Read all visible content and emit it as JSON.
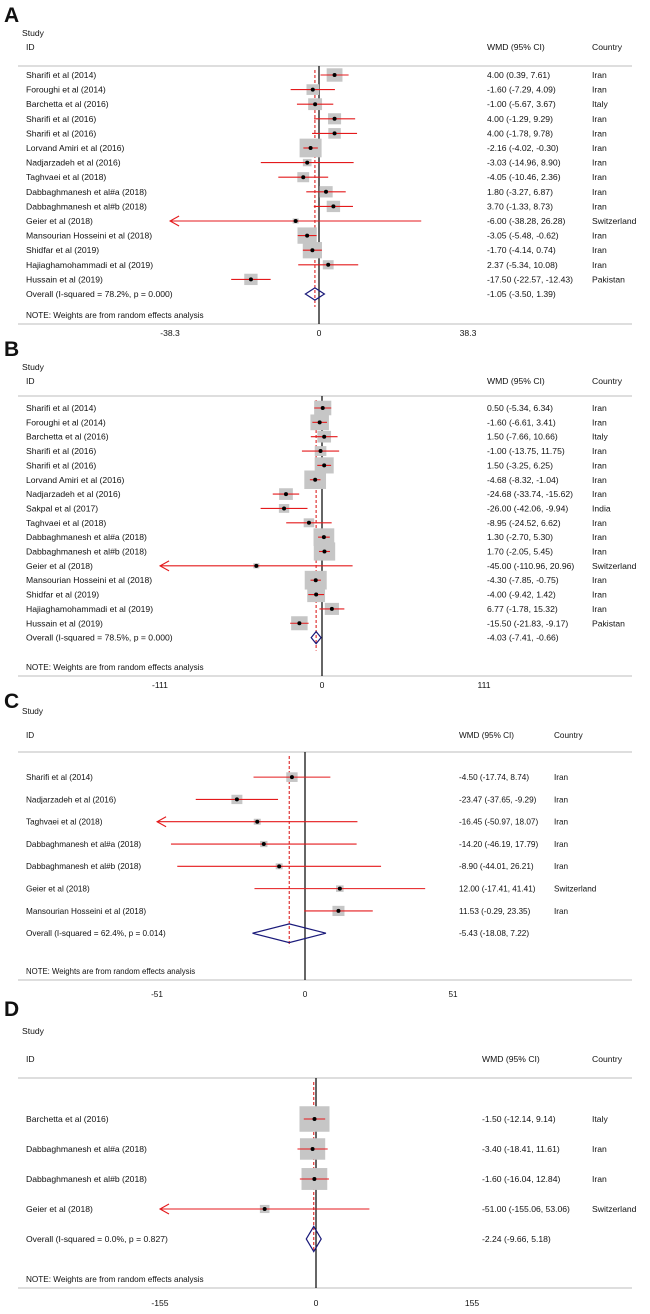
{
  "chart_data": [
    {
      "type": "forest",
      "panel_label": "A",
      "header": {
        "study": "Study",
        "id": "ID",
        "effect": "WMD (95% CI)",
        "country": "Country"
      },
      "xlim": [
        -38.3,
        38.3
      ],
      "ticks": [
        "-38.3",
        "0",
        "38.3"
      ],
      "null_value": 0,
      "pooled_line": -1.05,
      "studies": [
        {
          "name": "Sharifi et al (2014)",
          "est": 4.0,
          "lo": 0.39,
          "hi": 7.61,
          "label": "4.00 (0.39, 7.61)",
          "country": "Iran"
        },
        {
          "name": "Foroughi et al (2014)",
          "est": -1.6,
          "lo": -7.29,
          "hi": 4.09,
          "label": "-1.60 (-7.29, 4.09)",
          "country": "Iran"
        },
        {
          "name": "Barchetta et al (2016)",
          "est": -1.0,
          "lo": -5.67,
          "hi": 3.67,
          "label": "-1.00 (-5.67, 3.67)",
          "country": "Italy"
        },
        {
          "name": "Sharifi et al (2016)",
          "est": 4.0,
          "lo": -1.29,
          "hi": 9.29,
          "label": "4.00 (-1.29, 9.29)",
          "country": "Iran"
        },
        {
          "name": "Sharifi et al (2016)",
          "est": 4.0,
          "lo": -1.78,
          "hi": 9.78,
          "label": "4.00 (-1.78, 9.78)",
          "country": "Iran"
        },
        {
          "name": "Lorvand Amiri et al (2016)",
          "est": -2.16,
          "lo": -4.02,
          "hi": -0.3,
          "label": "-2.16 (-4.02, -0.30)",
          "country": "Iran"
        },
        {
          "name": "Nadjarzadeh et al (2016)",
          "est": -3.03,
          "lo": -14.96,
          "hi": 8.9,
          "label": "-3.03 (-14.96, 8.90)",
          "country": "Iran"
        },
        {
          "name": "Taghvaei et al (2018)",
          "est": -4.05,
          "lo": -10.46,
          "hi": 2.36,
          "label": "-4.05 (-10.46, 2.36)",
          "country": "Iran"
        },
        {
          "name": "Dabbaghmanesh et al#a (2018)",
          "est": 1.8,
          "lo": -3.27,
          "hi": 6.87,
          "label": "1.80 (-3.27, 6.87)",
          "country": "Iran"
        },
        {
          "name": "Dabbaghmanesh et al#b (2018)",
          "est": 3.7,
          "lo": -1.33,
          "hi": 8.73,
          "label": "3.70 (-1.33, 8.73)",
          "country": "Iran"
        },
        {
          "name": "Geier et al (2018)",
          "est": -6.0,
          "lo": -38.28,
          "hi": 26.28,
          "label": "-6.00 (-38.28, 26.28)",
          "country": "Switzerland"
        },
        {
          "name": "Mansourian Hosseini et al (2018)",
          "est": -3.05,
          "lo": -5.48,
          "hi": -0.62,
          "label": "-3.05 (-5.48, -0.62)",
          "country": "Iran"
        },
        {
          "name": "Shidfar et al (2019)",
          "est": -1.7,
          "lo": -4.14,
          "hi": 0.74,
          "label": "-1.70 (-4.14, 0.74)",
          "country": "Iran"
        },
        {
          "name": "Hajiaghamohammadi et al (2019)",
          "est": 2.37,
          "lo": -5.34,
          "hi": 10.08,
          "label": "2.37 (-5.34, 10.08)",
          "country": "Iran"
        },
        {
          "name": "Hussain et al (2019)",
          "est": -17.5,
          "lo": -22.57,
          "hi": -12.43,
          "label": "-17.50 (-22.57, -12.43)",
          "country": "Pakistan"
        }
      ],
      "overall": {
        "name": "Overall  (I-squared = 78.2%, p = 0.000)",
        "est": -1.05,
        "lo": -3.5,
        "hi": 1.39,
        "label": "-1.05 (-3.50, 1.39)"
      },
      "note": "NOTE: Weights are from random effects analysis"
    },
    {
      "type": "forest",
      "panel_label": "B",
      "header": {
        "study": "Study",
        "id": "ID",
        "effect": "WMD (95% CI)",
        "country": "Country"
      },
      "xlim": [
        -111,
        111
      ],
      "ticks": [
        "-111",
        "0",
        "111"
      ],
      "null_value": 0,
      "pooled_line": -4.03,
      "studies": [
        {
          "name": "Sharifi et al (2014)",
          "est": 0.5,
          "lo": -5.34,
          "hi": 6.34,
          "label": "0.50 (-5.34, 6.34)",
          "country": "Iran"
        },
        {
          "name": "Foroughi et al (2014)",
          "est": -1.6,
          "lo": -6.61,
          "hi": 3.41,
          "label": "-1.60 (-6.61, 3.41)",
          "country": "Iran"
        },
        {
          "name": "Barchetta et al (2016)",
          "est": 1.5,
          "lo": -7.66,
          "hi": 10.66,
          "label": "1.50 (-7.66, 10.66)",
          "country": "Italy"
        },
        {
          "name": "Sharifi et al (2016)",
          "est": -1.0,
          "lo": -13.75,
          "hi": 11.75,
          "label": "-1.00 (-13.75, 11.75)",
          "country": "Iran"
        },
        {
          "name": "Sharifi et al (2016)",
          "est": 1.5,
          "lo": -3.25,
          "hi": 6.25,
          "label": "1.50 (-3.25, 6.25)",
          "country": "Iran"
        },
        {
          "name": "Lorvand Amiri et al (2016)",
          "est": -4.68,
          "lo": -8.32,
          "hi": -1.04,
          "label": "-4.68 (-8.32, -1.04)",
          "country": "Iran"
        },
        {
          "name": "Nadjarzadeh et al (2016)",
          "est": -24.68,
          "lo": -33.74,
          "hi": -15.62,
          "label": "-24.68 (-33.74, -15.62)",
          "country": "Iran"
        },
        {
          "name": "Sakpal et al (2017)",
          "est": -26.0,
          "lo": -42.06,
          "hi": -9.94,
          "label": "-26.00 (-42.06, -9.94)",
          "country": "India"
        },
        {
          "name": "Taghvaei et al (2018)",
          "est": -8.95,
          "lo": -24.52,
          "hi": 6.62,
          "label": "-8.95 (-24.52, 6.62)",
          "country": "Iran"
        },
        {
          "name": "Dabbaghmanesh et al#a (2018)",
          "est": 1.3,
          "lo": -2.7,
          "hi": 5.3,
          "label": "1.30 (-2.70, 5.30)",
          "country": "Iran"
        },
        {
          "name": "Dabbaghmanesh et al#b (2018)",
          "est": 1.7,
          "lo": -2.05,
          "hi": 5.45,
          "label": "1.70 (-2.05, 5.45)",
          "country": "Iran"
        },
        {
          "name": "Geier et al (2018)",
          "est": -45.0,
          "lo": -110.96,
          "hi": 20.96,
          "label": "-45.00 (-110.96, 20.96)",
          "country": "Switzerland"
        },
        {
          "name": "Mansourian Hosseini et al (2018)",
          "est": -4.3,
          "lo": -7.85,
          "hi": -0.75,
          "label": "-4.30 (-7.85, -0.75)",
          "country": "Iran"
        },
        {
          "name": "Shidfar et al (2019)",
          "est": -4.0,
          "lo": -9.42,
          "hi": 1.42,
          "label": "-4.00 (-9.42, 1.42)",
          "country": "Iran"
        },
        {
          "name": "Hajiaghamohammadi et al (2019)",
          "est": 6.77,
          "lo": -1.78,
          "hi": 15.32,
          "label": "6.77 (-1.78, 15.32)",
          "country": "Iran"
        },
        {
          "name": "Hussain et al (2019)",
          "est": -15.5,
          "lo": -21.83,
          "hi": -9.17,
          "label": "-15.50 (-21.83, -9.17)",
          "country": "Pakistan"
        }
      ],
      "overall": {
        "name": "Overall  (I-squared = 78.5%, p = 0.000)",
        "est": -4.03,
        "lo": -7.41,
        "hi": -0.66,
        "label": "-4.03 (-7.41, -0.66)"
      },
      "note": "NOTE: Weights are from random effects analysis"
    },
    {
      "type": "forest",
      "panel_label": "C",
      "header": {
        "study": "Study",
        "id": "ID",
        "effect": "WMD (95% CI)",
        "country": "Country"
      },
      "xlim": [
        -51,
        51
      ],
      "ticks": [
        "-51",
        "0",
        "51"
      ],
      "null_value": 0,
      "pooled_line": -5.43,
      "studies": [
        {
          "name": "Sharifi et al (2014)",
          "est": -4.5,
          "lo": -17.74,
          "hi": 8.74,
          "label": "-4.50 (-17.74, 8.74)",
          "country": "Iran"
        },
        {
          "name": "Nadjarzadeh et al (2016)",
          "est": -23.47,
          "lo": -37.65,
          "hi": -9.29,
          "label": "-23.47 (-37.65, -9.29)",
          "country": "Iran"
        },
        {
          "name": "Taghvaei et al (2018)",
          "est": -16.45,
          "lo": -50.97,
          "hi": 18.07,
          "label": "-16.45 (-50.97, 18.07)",
          "country": "Iran"
        },
        {
          "name": "Dabbaghmanesh et al#a (2018)",
          "est": -14.2,
          "lo": -46.19,
          "hi": 17.79,
          "label": "-14.20 (-46.19, 17.79)",
          "country": "Iran"
        },
        {
          "name": "Dabbaghmanesh et al#b (2018)",
          "est": -8.9,
          "lo": -44.01,
          "hi": 26.21,
          "label": "-8.90 (-44.01, 26.21)",
          "country": "Iran"
        },
        {
          "name": "Geier et al (2018)",
          "est": 12.0,
          "lo": -17.41,
          "hi": 41.41,
          "label": "12.00 (-17.41, 41.41)",
          "country": "Switzerland"
        },
        {
          "name": "Mansourian Hosseini et al (2018)",
          "est": 11.53,
          "lo": -0.29,
          "hi": 23.35,
          "label": "11.53 (-0.29, 23.35)",
          "country": "Iran"
        }
      ],
      "overall": {
        "name": "Overall  (I-squared = 62.4%, p = 0.014)",
        "est": -5.43,
        "lo": -18.08,
        "hi": 7.22,
        "label": "-5.43 (-18.08, 7.22)"
      },
      "note": "NOTE: Weights are from random effects analysis"
    },
    {
      "type": "forest",
      "panel_label": "D",
      "header": {
        "study": "Study",
        "id": "ID",
        "effect": "WMD (95% CI)",
        "country": "Country"
      },
      "xlim": [
        -155,
        155
      ],
      "ticks": [
        "-155",
        "0",
        "155"
      ],
      "null_value": 0,
      "pooled_line": -2.24,
      "studies": [
        {
          "name": "Barchetta et al (2016)",
          "est": -1.5,
          "lo": -12.14,
          "hi": 9.14,
          "label": "-1.50 (-12.14, 9.14)",
          "country": "Italy"
        },
        {
          "name": "Dabbaghmanesh et al#a (2018)",
          "est": -3.4,
          "lo": -18.41,
          "hi": 11.61,
          "label": "-3.40 (-18.41, 11.61)",
          "country": "Iran"
        },
        {
          "name": "Dabbaghmanesh et al#b (2018)",
          "est": -1.6,
          "lo": -16.04,
          "hi": 12.84,
          "label": "-1.60 (-16.04, 12.84)",
          "country": "Iran"
        },
        {
          "name": "Geier et al (2018)",
          "est": -51.0,
          "lo": -155.06,
          "hi": 53.06,
          "label": "-51.00 (-155.06, 53.06)",
          "country": "Switzerland"
        }
      ],
      "overall": {
        "name": "Overall  (I-squared = 0.0%, p = 0.827)",
        "est": -2.24,
        "lo": -9.66,
        "hi": 5.18,
        "label": "-2.24 (-9.66, 5.18)"
      },
      "note": "NOTE: Weights are from random effects analysis"
    }
  ]
}
